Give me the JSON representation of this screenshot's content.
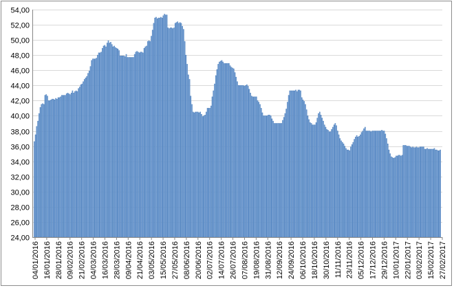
{
  "chart_data": {
    "type": "bar",
    "title": "",
    "xlabel": "",
    "ylabel": "",
    "ylim": [
      24,
      54
    ],
    "y_ticks": [
      "24,00",
      "26,00",
      "28,00",
      "30,00",
      "32,00",
      "34,00",
      "36,00",
      "38,00",
      "40,00",
      "42,00",
      "44,00",
      "46,00",
      "48,00",
      "50,00",
      "52,00",
      "54,00"
    ],
    "x_ticks": [
      "04/01/2016",
      "16/01/2016",
      "28/01/2016",
      "09/02/2016",
      "21/02/2016",
      "04/03/2016",
      "16/03/2016",
      "28/03/2016",
      "09/04/2016",
      "21/04/2016",
      "03/05/2016",
      "15/05/2016",
      "27/05/2016",
      "08/06/2016",
      "20/06/2016",
      "02/07/2016",
      "14/07/2016",
      "26/07/2016",
      "07/08/2016",
      "19/08/2016",
      "31/08/2016",
      "12/09/2016",
      "24/09/2016",
      "06/10/2016",
      "18/10/2016",
      "30/10/2016",
      "11/11/2016",
      "23/11/2016",
      "05/12/2016",
      "17/12/2016",
      "29/12/2016",
      "10/01/2017",
      "22/01/2017",
      "03/02/2017",
      "15/02/2017",
      "27/02/2017"
    ],
    "grid": true,
    "legend": "none",
    "bar_color": "#8eb4e3",
    "bar_edge_color": "#4f81bd",
    "values": [
      36.6,
      37.5,
      38.6,
      39.3,
      40.3,
      41.1,
      41.5,
      41.6,
      41.5,
      42.7,
      42.8,
      42.6,
      42.0,
      42.0,
      42.1,
      42.2,
      42.2,
      42.1,
      42.3,
      42.2,
      42.4,
      42.4,
      42.5,
      42.7,
      42.7,
      42.7,
      42.7,
      42.9,
      43.0,
      42.9,
      42.8,
      43.0,
      43.3,
      43.0,
      43.2,
      43.3,
      43.2,
      43.6,
      43.8,
      44.1,
      44.2,
      44.5,
      44.8,
      45.0,
      45.2,
      45.6,
      45.9,
      46.5,
      47.3,
      47.5,
      47.5,
      47.5,
      47.6,
      48.0,
      48.3,
      48.3,
      48.4,
      48.9,
      49.2,
      49.3,
      49.1,
      49.6,
      49.9,
      49.6,
      49.7,
      49.4,
      49.1,
      49.2,
      49.0,
      48.9,
      48.8,
      48.6,
      47.9,
      47.9,
      47.9,
      47.9,
      47.8,
      48.1,
      47.7,
      47.7,
      47.7,
      47.7,
      47.7,
      47.7,
      48.1,
      48.4,
      48.5,
      48.4,
      48.3,
      48.4,
      48.4,
      48.3,
      48.9,
      49.1,
      49.2,
      49.8,
      49.9,
      49.8,
      50.5,
      51.3,
      52.2,
      52.9,
      53.0,
      52.8,
      52.9,
      52.9,
      53.0,
      52.9,
      53.2,
      53.4,
      53.3,
      53.3,
      51.6,
      51.5,
      51.6,
      51.6,
      51.5,
      51.6,
      52.2,
      52.3,
      52.4,
      52.2,
      52.3,
      52.2,
      51.8,
      51.4,
      49.8,
      48.0,
      46.8,
      45.4,
      44.8,
      42.6,
      41.5,
      40.5,
      40.4,
      40.5,
      40.5,
      40.5,
      40.4,
      40.5,
      40.2,
      39.9,
      40.0,
      40.1,
      40.5,
      41.0,
      41.0,
      41.0,
      41.3,
      42.5,
      43.3,
      44.2,
      45.3,
      46.1,
      46.8,
      47.1,
      47.2,
      47.3,
      47.1,
      46.9,
      46.9,
      46.9,
      46.9,
      46.9,
      46.6,
      46.4,
      46.3,
      46.2,
      45.7,
      45.1,
      44.5,
      44.0,
      44.0,
      44.0,
      44.0,
      44.0,
      43.9,
      44.0,
      44.1,
      43.9,
      43.5,
      43.0,
      42.6,
      42.5,
      42.5,
      42.5,
      42.5,
      42.0,
      41.8,
      41.5,
      41.0,
      40.4,
      40.0,
      40.0,
      40.0,
      40.0,
      40.1,
      40.1,
      40.0,
      39.6,
      39.3,
      39.0,
      39.0,
      39.0,
      39.0,
      39.0,
      39.0,
      39.0,
      39.4,
      39.8,
      40.3,
      40.9,
      41.8,
      42.7,
      43.3,
      43.3,
      43.3,
      43.3,
      43.3,
      43.4,
      43.2,
      43.4,
      43.4,
      43.3,
      42.4,
      42.1,
      41.9,
      41.5,
      40.8,
      40.0,
      39.5,
      39.1,
      39.0,
      38.8,
      38.8,
      38.8,
      39.1,
      39.7,
      40.3,
      40.5,
      40.1,
      39.7,
      39.3,
      38.8,
      38.5,
      38.2,
      38.1,
      37.9,
      37.9,
      38.2,
      38.5,
      38.8,
      39.0,
      38.7,
      38.0,
      37.5,
      37.0,
      36.7,
      36.5,
      36.3,
      36.0,
      35.7,
      35.5,
      35.5,
      35.4,
      35.9,
      36.2,
      36.5,
      36.9,
      37.2,
      37.4,
      37.2,
      37.3,
      37.5,
      37.8,
      38.0,
      38.3,
      38.5,
      38.0,
      38.0,
      38.0,
      38.0,
      37.9,
      38.0,
      38.0,
      38.0,
      38.0,
      38.0,
      38.0,
      38.0,
      38.0,
      38.1,
      38.0,
      38.0,
      37.6,
      37.0,
      36.3,
      35.5,
      35.0,
      34.6,
      34.5,
      34.4,
      34.5,
      34.7,
      34.7,
      34.8,
      34.8,
      34.7,
      34.8,
      36.1,
      36.1,
      36.1,
      36.0,
      36.0,
      36.0,
      35.9,
      35.8,
      35.9,
      35.8,
      35.8,
      35.9,
      35.8,
      35.8,
      35.9,
      35.9,
      35.9,
      35.9,
      35.6,
      35.6,
      35.7,
      35.6,
      35.6,
      35.6,
      35.6,
      35.6,
      35.7,
      35.5,
      35.5,
      35.4,
      35.4,
      35.5
    ]
  }
}
